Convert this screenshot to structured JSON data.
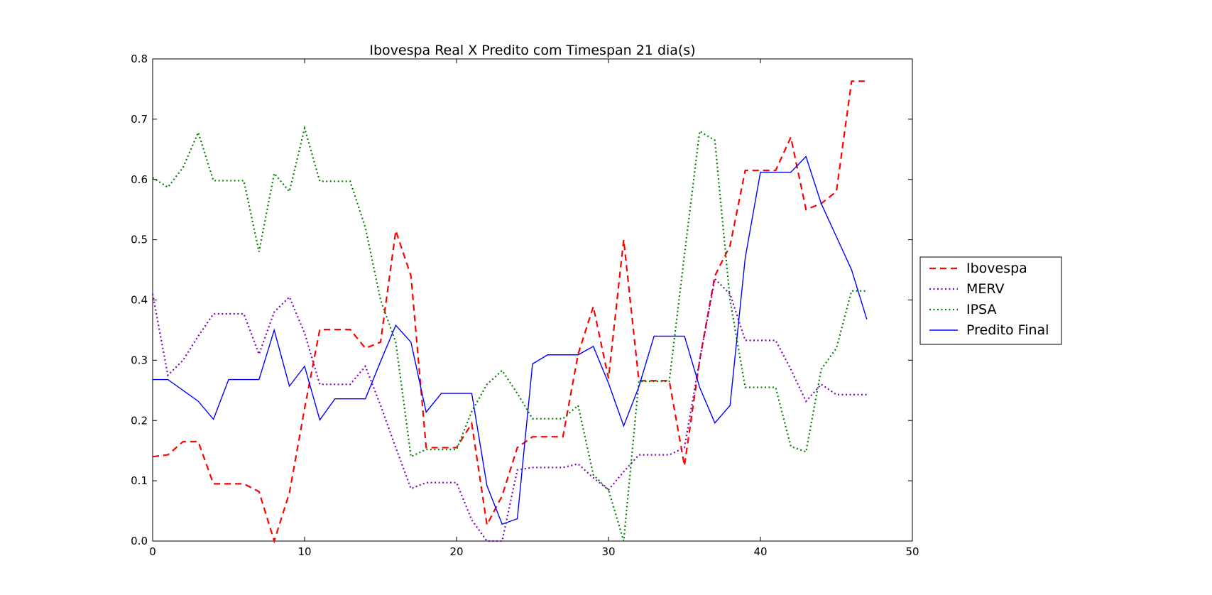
{
  "chart_data": {
    "type": "line",
    "title": "Ibovespa Real X Predito com Timespan 21 dia(s)",
    "xlabel": "",
    "ylabel": "",
    "xlim": [
      0,
      50
    ],
    "ylim": [
      0.0,
      0.8
    ],
    "xticks": [
      0,
      10,
      20,
      30,
      40,
      50
    ],
    "xtick_labels": [
      "0",
      "10",
      "20",
      "30",
      "40",
      "50"
    ],
    "yticks": [
      0.0,
      0.1,
      0.2,
      0.3,
      0.4,
      0.5,
      0.6,
      0.7,
      0.8
    ],
    "ytick_labels": [
      "0.0",
      "0.1",
      "0.2",
      "0.3",
      "0.4",
      "0.5",
      "0.6",
      "0.7",
      "0.8"
    ],
    "grid": false,
    "legend_position": "outside-right",
    "series": [
      {
        "name": "Ibovespa",
        "color": "#ff0000",
        "style": "dashed",
        "x": [
          0,
          1,
          2,
          3,
          4,
          5,
          6,
          7,
          8,
          9,
          10,
          11,
          12,
          13,
          14,
          15,
          16,
          17,
          18,
          19,
          20,
          21,
          22,
          23,
          24,
          25,
          26,
          27,
          28,
          29,
          30,
          31,
          32,
          33,
          34,
          35,
          36,
          37,
          38,
          39,
          40,
          41,
          42,
          43,
          44,
          45,
          46,
          47
        ],
        "y": [
          0.14,
          0.143,
          0.165,
          0.165,
          0.095,
          0.095,
          0.095,
          0.082,
          0.0,
          0.08,
          0.22,
          0.351,
          0.351,
          0.351,
          0.32,
          0.33,
          0.515,
          0.44,
          0.155,
          0.155,
          0.155,
          0.195,
          0.027,
          0.075,
          0.155,
          0.173,
          0.173,
          0.173,
          0.31,
          0.389,
          0.27,
          0.5,
          0.266,
          0.266,
          0.266,
          0.125,
          0.3,
          0.44,
          0.49,
          0.615,
          0.615,
          0.615,
          0.67,
          0.55,
          0.56,
          0.58,
          0.763,
          0.763
        ]
      },
      {
        "name": "MERV",
        "color": "#8000c0",
        "style": "dotted",
        "x": [
          0,
          1,
          2,
          3,
          4,
          5,
          6,
          7,
          8,
          9,
          10,
          11,
          12,
          13,
          14,
          15,
          16,
          17,
          18,
          19,
          20,
          21,
          22,
          23,
          24,
          25,
          26,
          27,
          28,
          29,
          30,
          31,
          32,
          33,
          34,
          35,
          36,
          37,
          38,
          39,
          40,
          41,
          42,
          43,
          44,
          45,
          46,
          47
        ],
        "y": [
          0.41,
          0.275,
          0.3,
          0.34,
          0.377,
          0.377,
          0.377,
          0.31,
          0.38,
          0.405,
          0.345,
          0.26,
          0.26,
          0.26,
          0.29,
          0.225,
          0.155,
          0.087,
          0.097,
          0.097,
          0.097,
          0.035,
          0.0,
          0.0,
          0.118,
          0.122,
          0.122,
          0.122,
          0.128,
          0.105,
          0.085,
          0.115,
          0.143,
          0.143,
          0.143,
          0.155,
          0.3,
          0.435,
          0.41,
          0.333,
          0.333,
          0.333,
          0.285,
          0.232,
          0.26,
          0.243,
          0.243,
          0.243
        ]
      },
      {
        "name": "IPSA",
        "color": "#008000",
        "style": "dotted",
        "x": [
          0,
          1,
          2,
          3,
          4,
          5,
          6,
          7,
          8,
          9,
          10,
          11,
          12,
          13,
          14,
          15,
          16,
          17,
          18,
          19,
          20,
          21,
          22,
          23,
          24,
          25,
          26,
          27,
          28,
          29,
          30,
          31,
          32,
          33,
          34,
          35,
          36,
          37,
          38,
          39,
          40,
          41,
          42,
          43,
          44,
          45,
          46,
          47
        ],
        "y": [
          0.603,
          0.587,
          0.62,
          0.678,
          0.598,
          0.598,
          0.598,
          0.48,
          0.61,
          0.58,
          0.685,
          0.597,
          0.597,
          0.597,
          0.52,
          0.4,
          0.33,
          0.14,
          0.152,
          0.152,
          0.152,
          0.215,
          0.26,
          0.283,
          0.245,
          0.203,
          0.203,
          0.203,
          0.225,
          0.11,
          0.085,
          0.0,
          0.265,
          0.265,
          0.265,
          0.475,
          0.68,
          0.665,
          0.4,
          0.255,
          0.255,
          0.255,
          0.157,
          0.148,
          0.285,
          0.32,
          0.415,
          0.415
        ]
      },
      {
        "name": "Predito Final",
        "color": "#0000ff",
        "style": "solid",
        "x": [
          0,
          1,
          2,
          3,
          4,
          5,
          6,
          7,
          8,
          9,
          10,
          11,
          12,
          13,
          14,
          15,
          16,
          17,
          18,
          19,
          20,
          21,
          22,
          23,
          24,
          25,
          26,
          27,
          28,
          29,
          30,
          31,
          32,
          33,
          34,
          35,
          36,
          37,
          38,
          39,
          40,
          41,
          42,
          43,
          44,
          45,
          46,
          47
        ],
        "y": [
          0.268,
          0.268,
          0.25,
          0.232,
          0.202,
          0.268,
          0.268,
          0.268,
          0.35,
          0.257,
          0.29,
          0.201,
          0.236,
          0.236,
          0.236,
          0.298,
          0.358,
          0.33,
          0.214,
          0.245,
          0.245,
          0.245,
          0.092,
          0.028,
          0.037,
          0.294,
          0.309,
          0.309,
          0.309,
          0.323,
          0.262,
          0.191,
          0.256,
          0.34,
          0.34,
          0.34,
          0.255,
          0.196,
          0.225,
          0.47,
          0.612,
          0.612,
          0.612,
          0.638,
          0.56,
          0.505,
          0.45,
          0.368
        ]
      }
    ]
  }
}
